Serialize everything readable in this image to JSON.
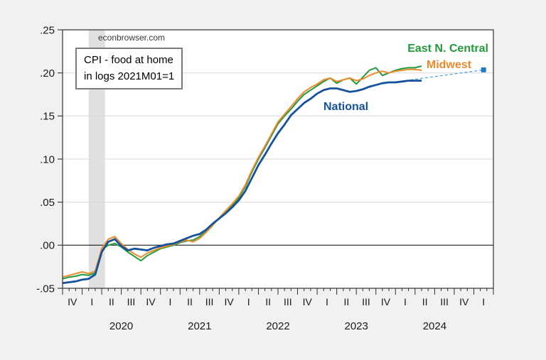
{
  "watermark": "econbrowser.com",
  "annotation": {
    "line1": "CPI - food at home",
    "line2": "in logs 2021M01=1"
  },
  "series_labels": {
    "enc": "East N. Central",
    "midwest": "Midwest",
    "national": "National"
  },
  "colors": {
    "national": "#15529e",
    "midwest": "#ec8a2d",
    "east_n_central": "#229b3a",
    "projection_line": "#5aabdf",
    "projection_marker": "#1b7ec2",
    "grid": "#d8d8d8",
    "zero_line": "#000000",
    "frame": "#3f3f3f",
    "recession_band": "#e0e0e0",
    "plot_background": "#ffffff",
    "page_background": "#f1f1f1",
    "axis_text": "#1a1a1a"
  },
  "chart_data": {
    "type": "line",
    "title": "CPI - food at home in logs 2021M01=1",
    "watermark": "econbrowser.com",
    "ylim": [
      -0.05,
      0.25
    ],
    "ytick_labels": [
      ".25",
      ".20",
      ".15",
      ".10",
      ".05",
      ".00",
      "-.05"
    ],
    "ytick_values": [
      0.25,
      0.2,
      0.15,
      0.1,
      0.05,
      0.0,
      -0.05
    ],
    "grid": "horizontal",
    "zero_line": true,
    "x_axis": {
      "unit": "month",
      "first_month_on_axis": "2019-10",
      "total_months": 66,
      "minor_tick_every_months": 1,
      "major_tick_every_months": 3,
      "quarter_labels": [
        "IV",
        "I",
        "II",
        "III",
        "IV",
        "I",
        "II",
        "III",
        "IV",
        "I",
        "II",
        "III",
        "IV",
        "I",
        "II",
        "III",
        "IV",
        "I",
        "II",
        "III",
        "IV",
        "I"
      ],
      "year_labels": [
        "2020",
        "2021",
        "2022",
        "2023",
        "2024"
      ]
    },
    "recession_band": {
      "start_month": 4,
      "end_month": 6.5
    },
    "series": [
      {
        "name": "East N. Central",
        "color": "#229b3a",
        "line_width": 2,
        "start_month": 0,
        "values": [
          -0.039,
          -0.037,
          -0.036,
          -0.034,
          -0.035,
          -0.032,
          -0.005,
          0.0,
          0.002,
          -0.002,
          -0.008,
          -0.013,
          -0.018,
          -0.012,
          -0.008,
          -0.004,
          -0.002,
          0.0,
          0.003,
          0.005,
          0.006,
          0.01,
          0.016,
          0.024,
          0.031,
          0.038,
          0.046,
          0.055,
          0.068,
          0.085,
          0.1,
          0.113,
          0.127,
          0.141,
          0.15,
          0.158,
          0.167,
          0.175,
          0.18,
          0.185,
          0.19,
          0.194,
          0.188,
          0.192,
          0.194,
          0.187,
          0.195,
          0.203,
          0.206,
          0.197,
          0.2,
          0.203,
          0.205,
          0.206,
          0.206,
          0.208
        ]
      },
      {
        "name": "Midwest",
        "color": "#ec8a2d",
        "line_width": 2,
        "start_month": 0,
        "values": [
          -0.037,
          -0.035,
          -0.033,
          -0.031,
          -0.033,
          -0.03,
          -0.004,
          0.007,
          0.01,
          0.002,
          -0.005,
          -0.01,
          -0.014,
          -0.009,
          -0.006,
          -0.003,
          -0.001,
          0.001,
          0.004,
          0.006,
          0.004,
          0.008,
          0.015,
          0.023,
          0.032,
          0.04,
          0.048,
          0.057,
          0.07,
          0.087,
          0.102,
          0.115,
          0.129,
          0.143,
          0.152,
          0.161,
          0.17,
          0.178,
          0.183,
          0.187,
          0.192,
          0.194,
          0.19,
          0.192,
          0.194,
          0.191,
          0.193,
          0.197,
          0.2,
          0.202,
          0.2,
          0.202,
          0.203,
          0.204,
          0.204,
          0.203
        ]
      },
      {
        "name": "National",
        "color": "#15529e",
        "line_width": 2.8,
        "start_month": 0,
        "values": [
          -0.044,
          -0.043,
          -0.042,
          -0.04,
          -0.039,
          -0.034,
          -0.008,
          0.004,
          0.007,
          -0.001,
          -0.006,
          -0.004,
          -0.005,
          -0.006,
          -0.003,
          -0.001,
          0.001,
          0.002,
          0.005,
          0.008,
          0.011,
          0.013,
          0.018,
          0.025,
          0.031,
          0.037,
          0.044,
          0.052,
          0.063,
          0.078,
          0.093,
          0.105,
          0.118,
          0.13,
          0.14,
          0.151,
          0.158,
          0.165,
          0.17,
          0.176,
          0.18,
          0.182,
          0.182,
          0.18,
          0.178,
          0.179,
          0.181,
          0.184,
          0.186,
          0.188,
          0.189,
          0.189,
          0.19,
          0.191,
          0.191,
          0.191
        ]
      }
    ],
    "projection": {
      "style": "dashed",
      "color": "#5aabdf",
      "from": {
        "month": 51,
        "value": 0.1895
      },
      "to": {
        "month": 64.5,
        "value": 0.2035
      },
      "marker": {
        "shape": "square",
        "color": "#1b7ec2",
        "size": 7,
        "month": 64.5,
        "value": 0.2035
      }
    }
  }
}
